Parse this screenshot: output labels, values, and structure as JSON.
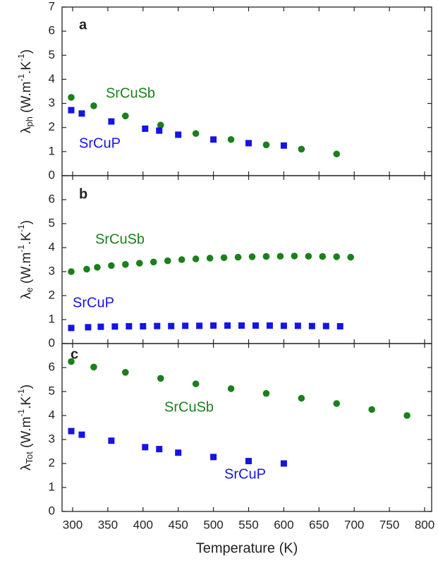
{
  "chart_data": [
    {
      "type": "scatter",
      "panel_label": "a",
      "ylabel": {
        "symbol": "λ",
        "sub": "ph",
        "unit": " (W.m",
        "exp1": "-1",
        "mid": ".K",
        "exp2": "-1",
        "end": ")"
      },
      "xlim": [
        285,
        810
      ],
      "ylim": [
        0,
        7
      ],
      "yticks": [
        0,
        1,
        2,
        3,
        4,
        5,
        6,
        7
      ],
      "series": [
        {
          "name": "SrCuSb",
          "color": "#1a801a",
          "marker": "circle",
          "x": [
            298,
            330,
            375,
            425,
            475,
            525,
            575,
            625,
            675
          ],
          "values": [
            3.25,
            2.9,
            2.48,
            2.1,
            1.75,
            1.5,
            1.28,
            1.1,
            0.9
          ]
        },
        {
          "name": "SrCuP",
          "color": "#1414e6",
          "marker": "square",
          "x": [
            298,
            313,
            355,
            403,
            423,
            450,
            500,
            550,
            600
          ],
          "values": [
            2.72,
            2.58,
            2.25,
            1.95,
            1.87,
            1.7,
            1.5,
            1.35,
            1.25
          ]
        }
      ]
    },
    {
      "type": "scatter",
      "panel_label": "b",
      "ylabel": {
        "symbol": "λ",
        "sub": "e",
        "unit": " (W.m",
        "exp1": "-1",
        "mid": ".K",
        "exp2": "-1",
        "end": ")"
      },
      "xlim": [
        285,
        810
      ],
      "ylim": [
        0,
        7
      ],
      "yticks": [
        0,
        1,
        2,
        3,
        4,
        5,
        6
      ],
      "series": [
        {
          "name": "SrCuSb",
          "color": "#1a801a",
          "marker": "circle",
          "x": [
            298,
            320,
            335,
            355,
            375,
            395,
            415,
            435,
            455,
            475,
            495,
            515,
            535,
            555,
            575,
            595,
            615,
            635,
            655,
            675,
            695
          ],
          "values": [
            3.0,
            3.1,
            3.18,
            3.25,
            3.3,
            3.35,
            3.4,
            3.45,
            3.5,
            3.53,
            3.56,
            3.58,
            3.6,
            3.62,
            3.63,
            3.64,
            3.65,
            3.64,
            3.63,
            3.62,
            3.6
          ]
        },
        {
          "name": "SrCuP",
          "color": "#1414e6",
          "marker": "square",
          "x": [
            298,
            322,
            340,
            360,
            380,
            400,
            420,
            440,
            460,
            480,
            500,
            520,
            540,
            560,
            580,
            600,
            620,
            640,
            660,
            680
          ],
          "values": [
            0.65,
            0.68,
            0.7,
            0.71,
            0.72,
            0.72,
            0.73,
            0.73,
            0.74,
            0.74,
            0.75,
            0.75,
            0.75,
            0.75,
            0.75,
            0.74,
            0.74,
            0.73,
            0.73,
            0.72
          ]
        }
      ]
    },
    {
      "type": "scatter",
      "panel_label": "c",
      "ylabel": {
        "symbol": "λ",
        "sub": "Tot",
        "unit": " (W.m",
        "exp1": "-1",
        "mid": ".K",
        "exp2": "-1",
        "end": ")"
      },
      "xlabel": "Temperature (K)",
      "xlim": [
        285,
        810
      ],
      "xticks": [
        300,
        350,
        400,
        450,
        500,
        550,
        600,
        650,
        700,
        750,
        800
      ],
      "ylim": [
        0,
        7
      ],
      "yticks": [
        0,
        1,
        2,
        3,
        4,
        5,
        6
      ],
      "series": [
        {
          "name": "SrCuSb",
          "color": "#1a801a",
          "marker": "circle",
          "x": [
            298,
            330,
            375,
            425,
            475,
            525,
            575,
            625,
            675,
            725,
            775
          ],
          "values": [
            6.25,
            6.02,
            5.8,
            5.55,
            5.32,
            5.12,
            4.92,
            4.72,
            4.5,
            4.25,
            4.0
          ]
        },
        {
          "name": "SrCuP",
          "color": "#1414e6",
          "marker": "square",
          "x": [
            298,
            313,
            355,
            403,
            423,
            450,
            500,
            550,
            600
          ],
          "values": [
            3.35,
            3.2,
            2.95,
            2.68,
            2.6,
            2.45,
            2.27,
            2.1,
            2.0
          ]
        }
      ]
    }
  ]
}
